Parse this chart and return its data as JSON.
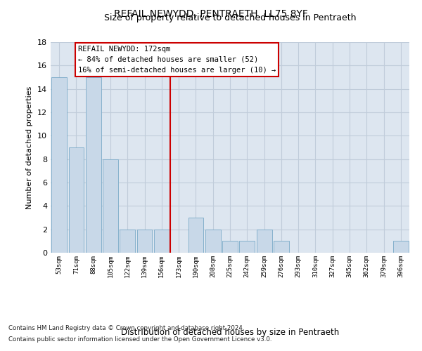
{
  "title": "REFAIL NEWYDD, PENTRAETH, LL75 8YF",
  "subtitle": "Size of property relative to detached houses in Pentraeth",
  "xlabel_bottom": "Distribution of detached houses by size in Pentraeth",
  "ylabel": "Number of detached properties",
  "categories": [
    "53sqm",
    "71sqm",
    "88sqm",
    "105sqm",
    "122sqm",
    "139sqm",
    "156sqm",
    "173sqm",
    "190sqm",
    "208sqm",
    "225sqm",
    "242sqm",
    "259sqm",
    "276sqm",
    "293sqm",
    "310sqm",
    "327sqm",
    "345sqm",
    "362sqm",
    "379sqm",
    "396sqm"
  ],
  "values": [
    15,
    9,
    15,
    8,
    2,
    2,
    2,
    0,
    3,
    2,
    1,
    1,
    2,
    1,
    0,
    0,
    0,
    0,
    0,
    0,
    1
  ],
  "bar_color": "#c8d8e8",
  "bar_edge_color": "#7aaac8",
  "vline_x_index": 7,
  "vline_color": "#cc0000",
  "annotation_line1": "REFAIL NEWYDD: 172sqm",
  "annotation_line2": "← 84% of detached houses are smaller (52)",
  "annotation_line3": "16% of semi-detached houses are larger (10) →",
  "annotation_box_color": "#ffffff",
  "annotation_box_edge_color": "#cc0000",
  "ylim": [
    0,
    18
  ],
  "yticks": [
    0,
    2,
    4,
    6,
    8,
    10,
    12,
    14,
    16,
    18
  ],
  "grid_color": "#c0ccda",
  "bg_color": "#dde6f0",
  "footnote1": "Contains HM Land Registry data © Crown copyright and database right 2024.",
  "footnote2": "Contains public sector information licensed under the Open Government Licence v3.0."
}
